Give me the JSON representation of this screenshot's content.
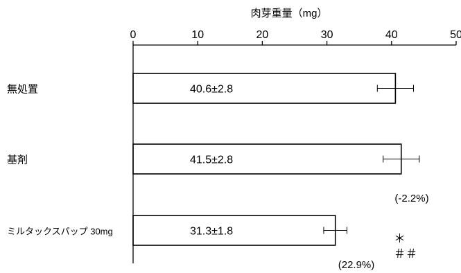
{
  "chart_data": {
    "type": "bar",
    "orientation": "horizontal",
    "title": "肉芽重量（mg）",
    "xlim": [
      0,
      50
    ],
    "ticks": [
      0,
      10,
      20,
      30,
      40,
      50
    ],
    "tick_labels": [
      "0",
      "10",
      "20",
      "30",
      "40",
      "50"
    ],
    "grid": false,
    "categories": [
      "無処置",
      "基剤",
      "ミルタックスパップ 30mg"
    ],
    "values": [
      40.6,
      41.5,
      31.3
    ],
    "errors": [
      2.8,
      2.8,
      1.8
    ],
    "value_labels": [
      "40.6±2.8",
      "41.5±2.8",
      "31.3±1.8"
    ],
    "annotations": [
      "",
      "(-2.2%)",
      "(22.9%)"
    ],
    "significance": [
      "",
      "",
      "＊\n＃＃"
    ]
  },
  "colors": {
    "bar_fill": "#ffffff",
    "bar_stroke": "#000000",
    "axis": "#000000"
  }
}
